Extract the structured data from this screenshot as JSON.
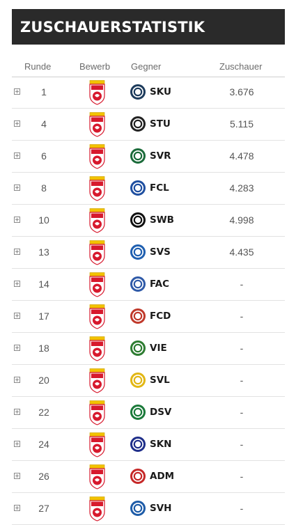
{
  "header": {
    "title": "ZUSCHAUERSTATISTIK"
  },
  "columns": {
    "runde": "Runde",
    "bewerb": "Bewerb",
    "gegner": "Gegner",
    "zuschauer": "Zuschauer"
  },
  "league_badge": {
    "top_text": "ADMIRAL",
    "main_text": "2. LIGA",
    "color": "#d7192d"
  },
  "rows": [
    {
      "runde": "1",
      "gegner": "SKU",
      "zuschauer": "3.676",
      "logo_color": "#1d3b5c"
    },
    {
      "runde": "4",
      "gegner": "STU",
      "zuschauer": "5.115",
      "logo_color": "#222222"
    },
    {
      "runde": "6",
      "gegner": "SVR",
      "zuschauer": "4.478",
      "logo_color": "#1b6b3a"
    },
    {
      "runde": "8",
      "gegner": "FCL",
      "zuschauer": "4.283",
      "logo_color": "#1f4fa0"
    },
    {
      "runde": "10",
      "gegner": "SWB",
      "zuschauer": "4.998",
      "logo_color": "#111111"
    },
    {
      "runde": "13",
      "gegner": "SVS",
      "zuschauer": "4.435",
      "logo_color": "#1f5fb0"
    },
    {
      "runde": "14",
      "gegner": "FAC",
      "zuschauer": "-",
      "logo_color": "#2f5aa8"
    },
    {
      "runde": "17",
      "gegner": "FCD",
      "zuschauer": "-",
      "logo_color": "#c0392b"
    },
    {
      "runde": "18",
      "gegner": "VIE",
      "zuschauer": "-",
      "logo_color": "#2e7d32"
    },
    {
      "runde": "20",
      "gegner": "SVL",
      "zuschauer": "-",
      "logo_color": "#e2b714"
    },
    {
      "runde": "22",
      "gegner": "DSV",
      "zuschauer": "-",
      "logo_color": "#1b7a3a"
    },
    {
      "runde": "24",
      "gegner": "SKN",
      "zuschauer": "-",
      "logo_color": "#1f2f8a"
    },
    {
      "runde": "26",
      "gegner": "ADM",
      "zuschauer": "-",
      "logo_color": "#c62828"
    },
    {
      "runde": "27",
      "gegner": "SVH",
      "zuschauer": "-",
      "logo_color": "#1e5ca8"
    }
  ]
}
